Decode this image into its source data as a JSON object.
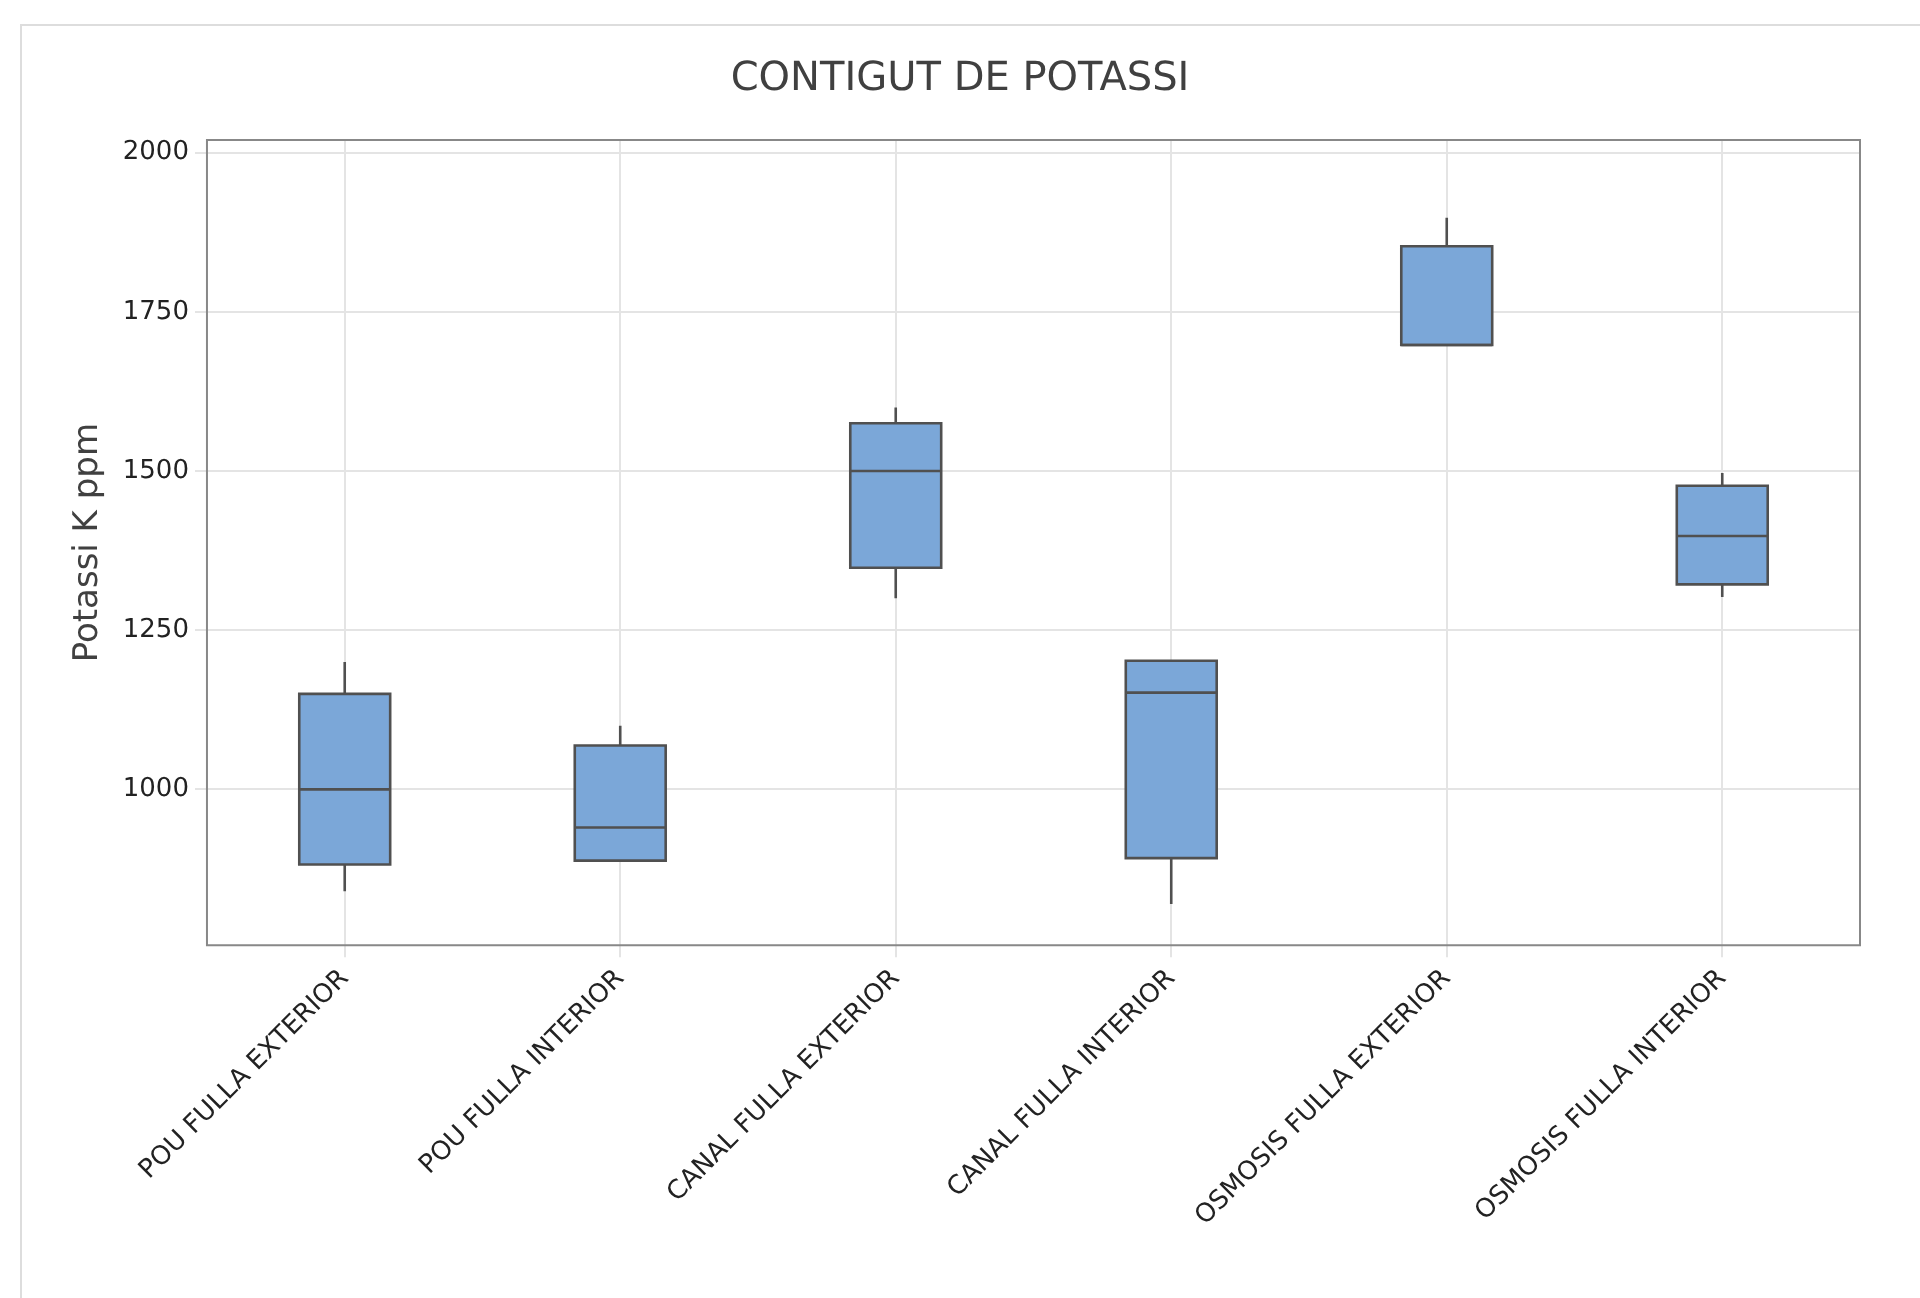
{
  "chart_data": {
    "type": "box",
    "title": "CONTIGUT DE POTASSI",
    "ylabel": "Potassi K ppm",
    "categories": [
      "POU FULLA EXTERIOR",
      "POU FULLA INTERIOR",
      "CANAL FULLA EXTERIOR",
      "CANAL FULLA INTERIOR",
      "OSMOSIS FULLA EXTERIOR",
      "OSMOSIS FULLA INTERIOR"
    ],
    "boxes": [
      {
        "low": 840,
        "q1": 882,
        "median": 1000,
        "q3": 1150,
        "high": 1200
      },
      {
        "low": 888,
        "q1": 888,
        "median": 940,
        "q3": 1069,
        "high": 1100
      },
      {
        "low": 1300,
        "q1": 1348,
        "median": 1500,
        "q3": 1575,
        "high": 1600
      },
      {
        "low": 820,
        "q1": 892,
        "median": 1152,
        "q3": 1202,
        "high": 1202
      },
      {
        "low": 1698,
        "q1": 1698,
        "median": 1698,
        "q3": 1853,
        "high": 1898
      },
      {
        "low": 1302,
        "q1": 1322,
        "median": 1398,
        "q3": 1477,
        "high": 1497
      }
    ],
    "color": "#7ba7d8",
    "ylim": [
      755,
      2020
    ],
    "yticks": [
      1000,
      1250,
      1500,
      1750,
      2000
    ],
    "grid": true
  }
}
